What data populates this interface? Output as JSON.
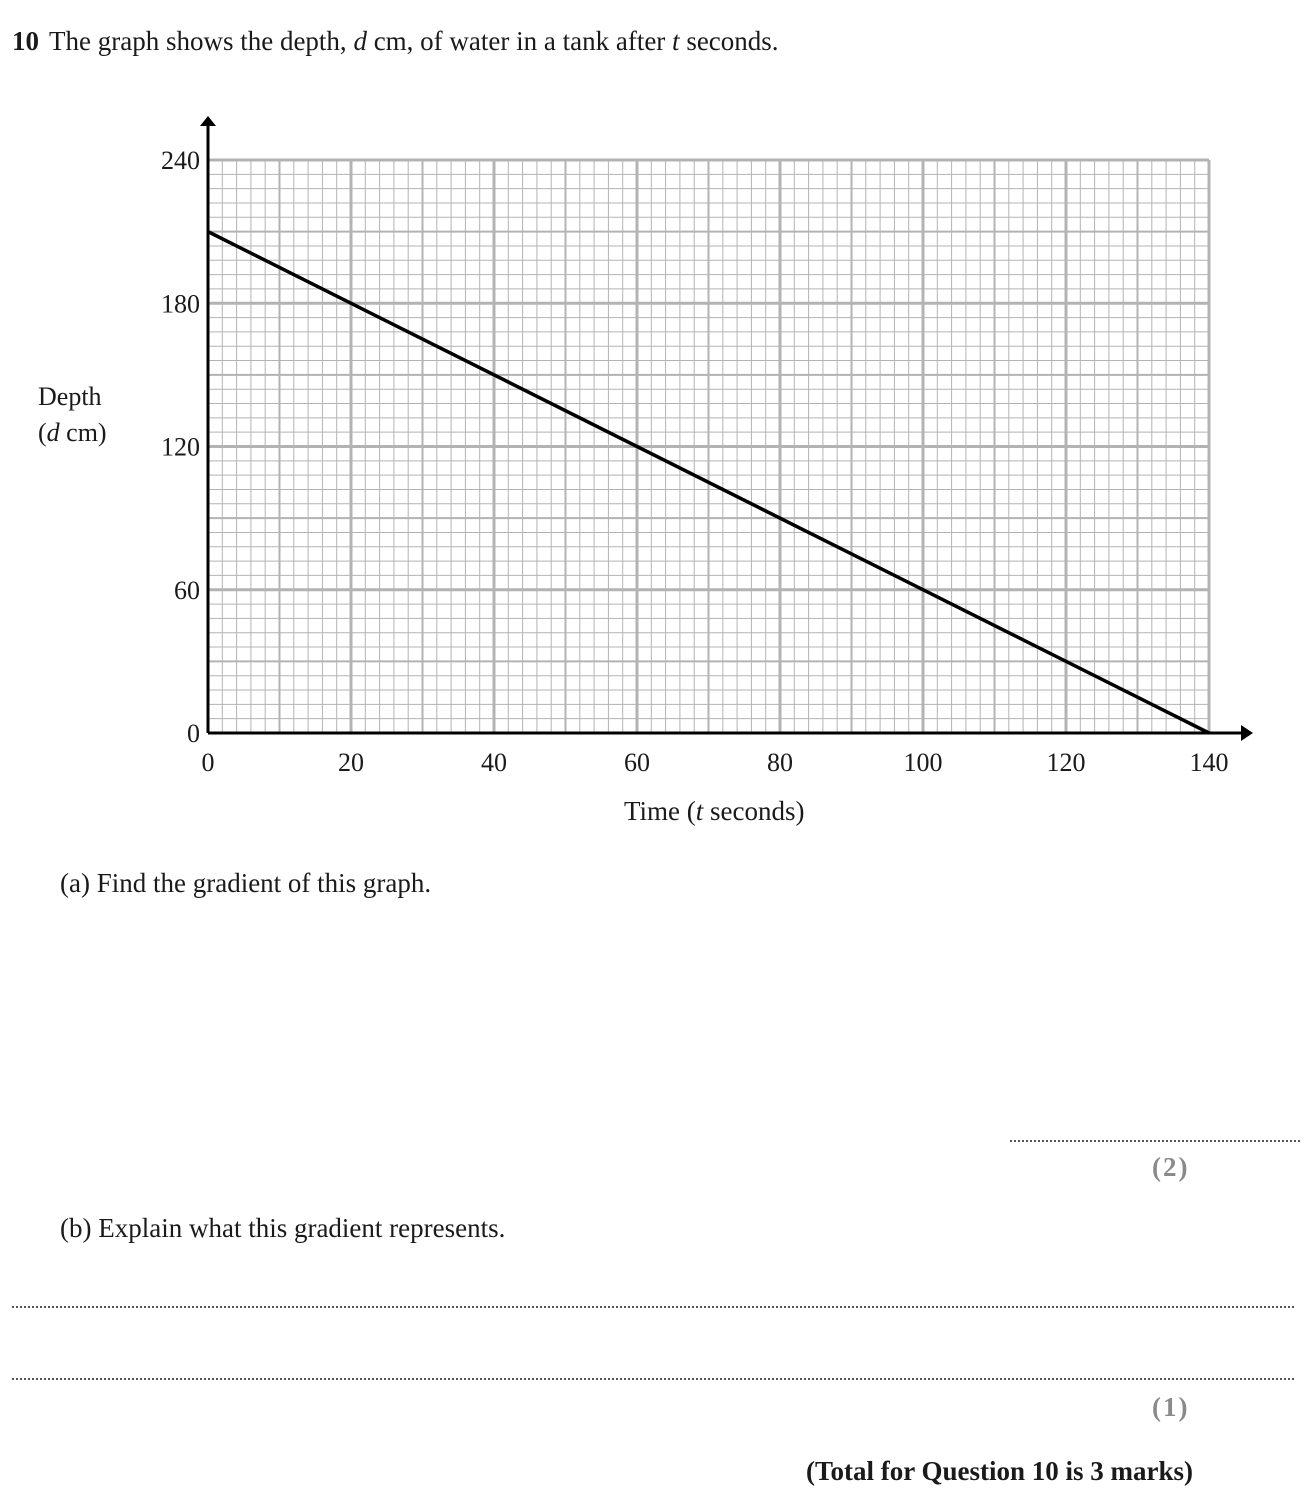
{
  "question": {
    "number": "10",
    "text_parts": [
      "The graph shows the depth, ",
      "d",
      " cm, of water in a tank after ",
      "t",
      " seconds."
    ]
  },
  "chart_data": {
    "type": "line",
    "x": [
      0,
      140
    ],
    "series": [
      {
        "values": [
          210,
          0
        ]
      }
    ],
    "xlim": [
      0,
      140
    ],
    "ylim": [
      0,
      240
    ],
    "x_ticks": [
      "0",
      "20",
      "40",
      "60",
      "80",
      "100",
      "120",
      "140"
    ],
    "y_ticks": [
      "0",
      "60",
      "120",
      "180",
      "240"
    ],
    "xlabel_parts": [
      "Time (",
      "t",
      " seconds)"
    ],
    "ylabel_line1": "Depth",
    "ylabel_line2_parts": [
      "(",
      "d",
      " cm)"
    ],
    "grid": true,
    "grid_color": "#b3b3b3",
    "line_color": "#000000"
  },
  "parts": {
    "a": {
      "label": "(a)",
      "text": "Find the gradient of this graph.",
      "marks": "(2)"
    },
    "b": {
      "label": "(b)",
      "text": "Explain what this gradient represents.",
      "marks": "(1)"
    }
  },
  "total": "(Total for Question 10 is 3 marks)"
}
